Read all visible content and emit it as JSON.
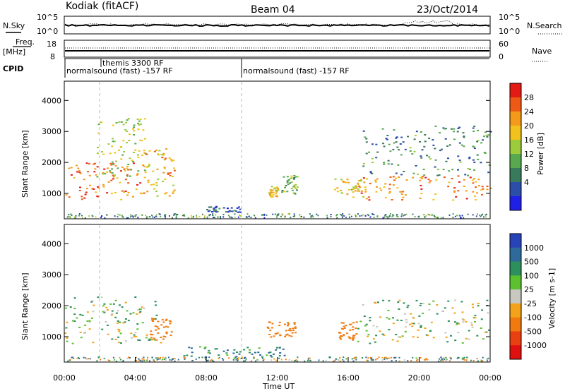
{
  "header": {
    "station": "Kodiak (fitACF)",
    "beam": "Beam 04",
    "date": "23/Oct/2014"
  },
  "top_panels": {
    "nsky_label": "N.Sky",
    "nsearch_label": "N.Search",
    "count_ticks_left": [
      "10^5",
      "10^0"
    ],
    "count_ticks_right": [
      "10^5",
      "10^0"
    ],
    "freq_label": "Freq.",
    "freq_unit": "[MHz]",
    "freq_ticks": [
      "18",
      "8"
    ],
    "nave_label": "Nave",
    "nave_ticks": [
      "60",
      "0"
    ],
    "cpid_label": "CPID",
    "cpid_entries": [
      {
        "text": "themis 3300 RF",
        "start_hour": 2.0
      },
      {
        "text": "normalsound (fast) -157 RF",
        "start_hour": 0.0
      },
      {
        "text": "normalsound (fast) -157 RF",
        "start_hour": 10.0
      }
    ]
  },
  "chart_data": [
    {
      "type": "heatmap",
      "panel": "power",
      "ylabel": "Slant Range [km]",
      "xlabel": "",
      "xlim": [
        0,
        24
      ],
      "ylim": [
        180,
        4600
      ],
      "yticks": [
        "1000",
        "2000",
        "3000",
        "4000"
      ],
      "colorbar": {
        "label": "Power [dB]",
        "ticks": [
          "4",
          "8",
          "12",
          "16",
          "20",
          "24",
          "28"
        ],
        "colors": [
          "#1f1fe6",
          "#2c4ea8",
          "#3a7a5c",
          "#58a850",
          "#9ccc3c",
          "#f2c21c",
          "#f39a1a",
          "#ee5a16",
          "#e41a14"
        ]
      },
      "regions": [
        {
          "t0": 0.0,
          "t1": 4.3,
          "r0": 800,
          "r1": 2000,
          "level": 0.8
        },
        {
          "t0": 1.8,
          "t1": 4.6,
          "r0": 1500,
          "r1": 3500,
          "level": 0.5
        },
        {
          "t0": 4.3,
          "t1": 6.2,
          "r0": 900,
          "r1": 2500,
          "level": 0.65
        },
        {
          "t0": 8.0,
          "t1": 9.9,
          "r0": 400,
          "r1": 600,
          "level": 0.2
        },
        {
          "t0": 11.5,
          "t1": 12.0,
          "r0": 900,
          "r1": 1300,
          "level": 0.6
        },
        {
          "t0": 12.2,
          "t1": 13.1,
          "r0": 1000,
          "r1": 1600,
          "level": 0.45
        },
        {
          "t0": 15.2,
          "t1": 17.0,
          "r0": 900,
          "r1": 1500,
          "level": 0.6
        },
        {
          "t0": 16.5,
          "t1": 24.0,
          "r0": 800,
          "r1": 1600,
          "level": 0.75
        },
        {
          "t0": 16.8,
          "t1": 24.0,
          "r0": 1600,
          "r1": 3200,
          "level": 0.3
        }
      ]
    },
    {
      "type": "heatmap",
      "panel": "velocity",
      "ylabel": "Slant Range [km]",
      "xlabel": "Time UT",
      "xlim": [
        0,
        24
      ],
      "ylim": [
        180,
        4600
      ],
      "xticks": [
        "00:00",
        "04:00",
        "08:00",
        "12:00",
        "16:00",
        "20:00",
        "00:00"
      ],
      "yticks": [
        "1000",
        "2000",
        "3000",
        "4000"
      ],
      "colorbar": {
        "label": "Velocity [m s-1]",
        "ticks": [
          "1000",
          "500",
          "100",
          "25",
          "-25",
          "-100",
          "-500",
          "-1000"
        ],
        "colors": [
          "#2842b8",
          "#2f6b9a",
          "#2c8f5c",
          "#5cc030",
          "#c8c8c0",
          "#f4a21a",
          "#f07a10",
          "#e84010",
          "#e01010"
        ]
      },
      "regions": [
        {
          "t0": 0.0,
          "t1": 5.4,
          "r0": 800,
          "r1": 2300,
          "value": 0
        },
        {
          "t0": 4.8,
          "t1": 6.0,
          "r0": 900,
          "r1": 1600,
          "value": -200
        },
        {
          "t0": 11.4,
          "t1": 13.0,
          "r0": 1000,
          "r1": 1500,
          "value": -300
        },
        {
          "t0": 15.3,
          "t1": 16.5,
          "r0": 900,
          "r1": 1500,
          "value": -200
        },
        {
          "t0": 16.5,
          "t1": 24.0,
          "r0": 800,
          "r1": 2200,
          "value": 0
        },
        {
          "t0": 6.5,
          "t1": 12.5,
          "r0": 300,
          "r1": 700,
          "value": 100
        }
      ]
    }
  ],
  "colors": {
    "trace": "#000000",
    "dashed_marker": "#b8b8b8"
  }
}
